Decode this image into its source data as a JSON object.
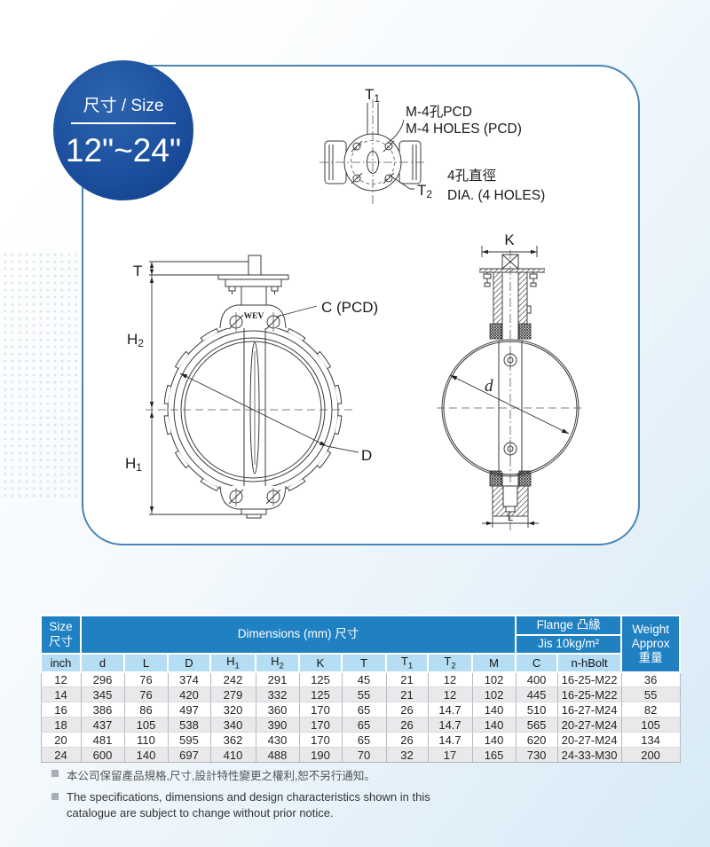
{
  "badge": {
    "label": "尺寸 / Size",
    "range": "12\"~24\""
  },
  "drawing": {
    "top_view": {
      "t1": {
        "base": "T",
        "sub": "1"
      },
      "t2": {
        "base": "T",
        "sub": "2"
      },
      "holes_note_zh": "M-4孔PCD",
      "holes_note_en": "M-4 HOLES (PCD)",
      "dia_note_zh": "4孔直徑",
      "dia_note_en": "DIA. (4 HOLES)"
    },
    "front_view": {
      "t": "T",
      "h2": {
        "base": "H",
        "sub": "2"
      },
      "h1": {
        "base": "H",
        "sub": "1"
      },
      "c_pcd": "C (PCD)",
      "d_label": "D",
      "brand": "WEV"
    },
    "side_view": {
      "k": "K",
      "d": "d",
      "l": "L"
    }
  },
  "table": {
    "header": {
      "size_en": "Size",
      "size_zh": "尺寸",
      "dimensions": "Dimensions (mm) 尺寸",
      "flange": "Flange 凸緣",
      "jis": "Jis 10kg/m²",
      "weight_1": "Weight",
      "weight_2": "Approx",
      "weight_3": "重量",
      "columns": [
        {
          "base": "inch"
        },
        {
          "base": "d"
        },
        {
          "base": "L"
        },
        {
          "base": "D"
        },
        {
          "base": "H",
          "sub": "1"
        },
        {
          "base": "H",
          "sub": "2"
        },
        {
          "base": "K"
        },
        {
          "base": "T"
        },
        {
          "base": "T",
          "sub": "1"
        },
        {
          "base": "T",
          "sub": "2"
        },
        {
          "base": "M"
        },
        {
          "base": "C"
        },
        {
          "base": "n-hBolt"
        }
      ]
    },
    "rows": [
      [
        "12",
        "296",
        "76",
        "374",
        "242",
        "291",
        "125",
        "45",
        "21",
        "12",
        "102",
        "400",
        "16-25-M22",
        "36"
      ],
      [
        "14",
        "345",
        "76",
        "420",
        "279",
        "332",
        "125",
        "55",
        "21",
        "12",
        "102",
        "445",
        "16-25-M22",
        "55"
      ],
      [
        "16",
        "386",
        "86",
        "497",
        "320",
        "360",
        "170",
        "65",
        "26",
        "14.7",
        "140",
        "510",
        "16-27-M24",
        "82"
      ],
      [
        "18",
        "437",
        "105",
        "538",
        "340",
        "390",
        "170",
        "65",
        "26",
        "14.7",
        "140",
        "565",
        "20-27-M24",
        "105"
      ],
      [
        "20",
        "481",
        "110",
        "595",
        "362",
        "430",
        "170",
        "65",
        "26",
        "14.7",
        "140",
        "620",
        "20-27-M24",
        "134"
      ],
      [
        "24",
        "600",
        "140",
        "697",
        "410",
        "488",
        "190",
        "70",
        "32",
        "17",
        "165",
        "730",
        "24-33-M30",
        "200"
      ]
    ]
  },
  "notes": {
    "zh": "本公司保留產品規格,尺寸,設計特性變更之權利,恕不另行通知。",
    "en": "The specifications, dimensions and design characteristics shown in this catalogue are subject to change without prior notice."
  },
  "colors": {
    "header_blue": "#1f80c2",
    "subheader_blue": "#b5def4",
    "row_alt": "#e9e9eb",
    "badge_blue": "#1d51a0",
    "panel_border_blue": "#4a85b4"
  }
}
